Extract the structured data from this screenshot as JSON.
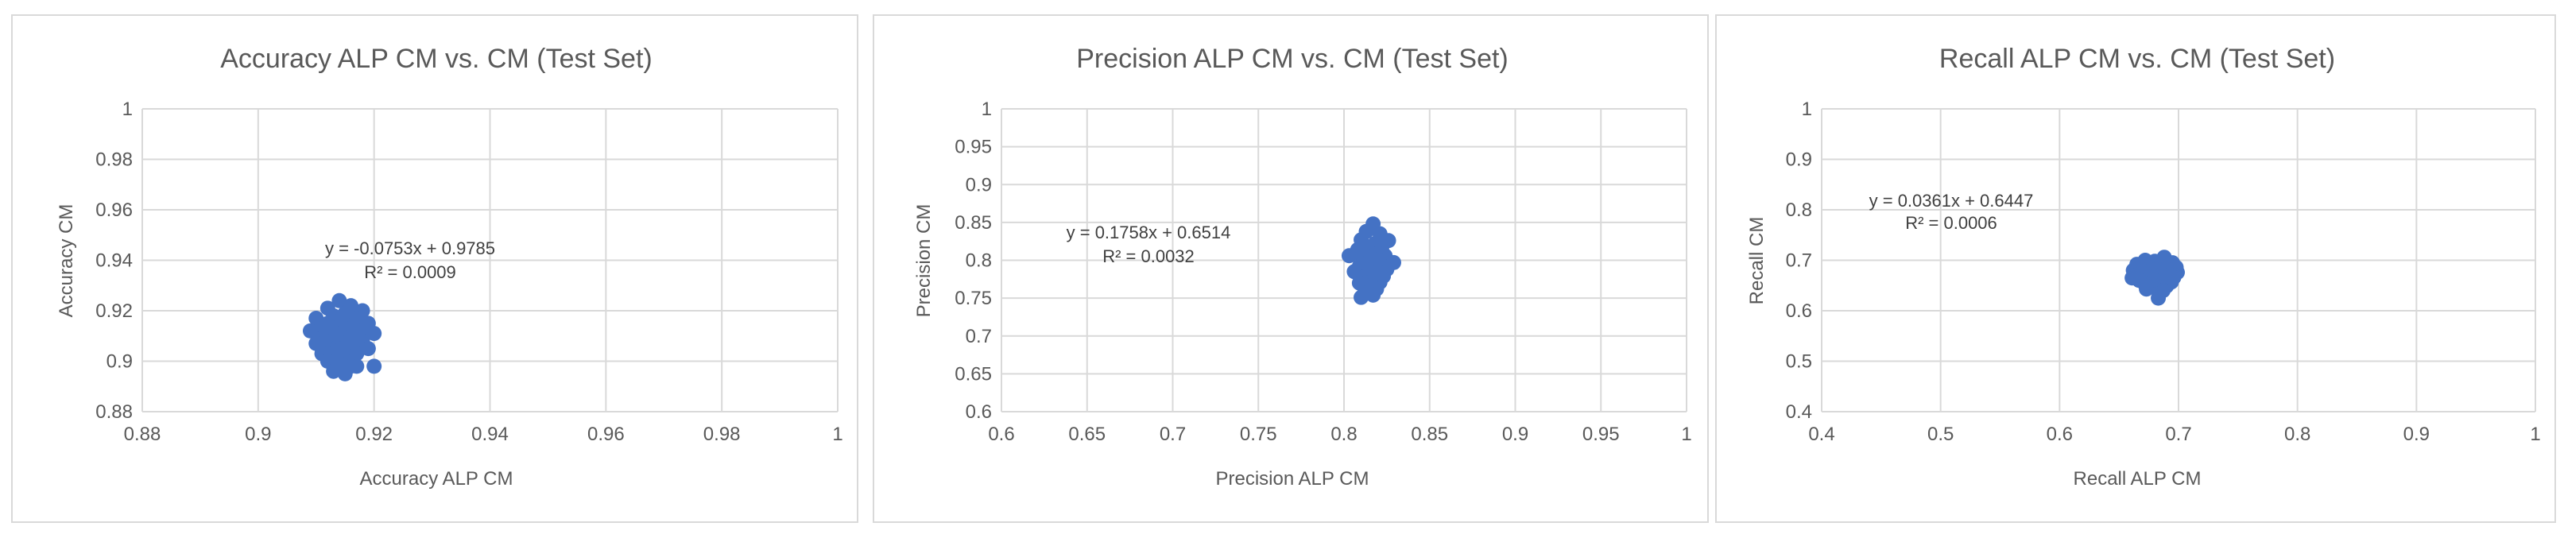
{
  "chart_data": [
    {
      "type": "scatter",
      "title": "Accuracy ALP CM vs. CM (Test Set)",
      "xlabel": "Accuracy ALP CM",
      "ylabel": "Accuracy CM",
      "xlim": [
        0.88,
        1
      ],
      "ylim": [
        0.88,
        1
      ],
      "xticks": [
        "0.88",
        "0.9",
        "0.92",
        "0.94",
        "0.96",
        "0.98",
        "1"
      ],
      "yticks": [
        "0.88",
        "0.9",
        "0.92",
        "0.94",
        "0.96",
        "0.98",
        "1"
      ],
      "grid": true,
      "marker_color": "#4472C4",
      "trendline": {
        "equation": "y = -0.0753x + 0.9785",
        "r2": "R² = 0.0009"
      },
      "points": [
        [
          0.914,
          0.924
        ],
        [
          0.916,
          0.922
        ],
        [
          0.912,
          0.921
        ],
        [
          0.918,
          0.92
        ],
        [
          0.915,
          0.919
        ],
        [
          0.913,
          0.918
        ],
        [
          0.91,
          0.917
        ],
        [
          0.917,
          0.917
        ],
        [
          0.914,
          0.916
        ],
        [
          0.919,
          0.915
        ],
        [
          0.912,
          0.915
        ],
        [
          0.916,
          0.914
        ],
        [
          0.911,
          0.913
        ],
        [
          0.915,
          0.913
        ],
        [
          0.918,
          0.912
        ],
        [
          0.913,
          0.912
        ],
        [
          0.909,
          0.912
        ],
        [
          0.917,
          0.911
        ],
        [
          0.914,
          0.911
        ],
        [
          0.92,
          0.911
        ],
        [
          0.912,
          0.91
        ],
        [
          0.916,
          0.91
        ],
        [
          0.911,
          0.909
        ],
        [
          0.915,
          0.909
        ],
        [
          0.918,
          0.908
        ],
        [
          0.913,
          0.908
        ],
        [
          0.91,
          0.907
        ],
        [
          0.917,
          0.907
        ],
        [
          0.914,
          0.906
        ],
        [
          0.916,
          0.906
        ],
        [
          0.912,
          0.905
        ],
        [
          0.919,
          0.905
        ],
        [
          0.915,
          0.904
        ],
        [
          0.913,
          0.903
        ],
        [
          0.911,
          0.903
        ],
        [
          0.917,
          0.903
        ],
        [
          0.914,
          0.902
        ],
        [
          0.916,
          0.901
        ],
        [
          0.912,
          0.9
        ],
        [
          0.915,
          0.9
        ],
        [
          0.913,
          0.899
        ],
        [
          0.917,
          0.898
        ],
        [
          0.92,
          0.898
        ],
        [
          0.914,
          0.897
        ],
        [
          0.916,
          0.898
        ],
        [
          0.913,
          0.896
        ],
        [
          0.915,
          0.895
        ],
        [
          0.914,
          0.9095
        ],
        [
          0.9135,
          0.9105
        ],
        [
          0.9155,
          0.9075
        ],
        [
          0.9125,
          0.9135
        ],
        [
          0.9165,
          0.9125
        ],
        [
          0.9145,
          0.9045
        ]
      ]
    },
    {
      "type": "scatter",
      "title": "Precision ALP CM vs. CM (Test Set)",
      "xlabel": "Precision ALP CM",
      "ylabel": "Precision CM",
      "xlim": [
        0.6,
        1
      ],
      "ylim": [
        0.6,
        1
      ],
      "xticks": [
        "0.6",
        "0.65",
        "0.7",
        "0.75",
        "0.8",
        "0.85",
        "0.9",
        "0.95",
        "1"
      ],
      "yticks": [
        "0.6",
        "0.65",
        "0.7",
        "0.75",
        "0.8",
        "0.85",
        "0.9",
        "0.95",
        "1"
      ],
      "grid": true,
      "marker_color": "#4472C4",
      "trendline": {
        "equation": "y = 0.1758x + 0.6514",
        "r2": "R² = 0.0032"
      },
      "points": [
        [
          0.817,
          0.848
        ],
        [
          0.813,
          0.838
        ],
        [
          0.821,
          0.835
        ],
        [
          0.826,
          0.826
        ],
        [
          0.81,
          0.827
        ],
        [
          0.818,
          0.822
        ],
        [
          0.815,
          0.818
        ],
        [
          0.822,
          0.816
        ],
        [
          0.808,
          0.814
        ],
        [
          0.812,
          0.81
        ],
        [
          0.82,
          0.809
        ],
        [
          0.824,
          0.806
        ],
        [
          0.816,
          0.805
        ],
        [
          0.803,
          0.806
        ],
        [
          0.829,
          0.797
        ],
        [
          0.811,
          0.8
        ],
        [
          0.819,
          0.798
        ],
        [
          0.814,
          0.795
        ],
        [
          0.822,
          0.793
        ],
        [
          0.809,
          0.792
        ],
        [
          0.817,
          0.79
        ],
        [
          0.825,
          0.788
        ],
        [
          0.813,
          0.786
        ],
        [
          0.82,
          0.784
        ],
        [
          0.806,
          0.785
        ],
        [
          0.815,
          0.781
        ],
        [
          0.823,
          0.779
        ],
        [
          0.811,
          0.777
        ],
        [
          0.818,
          0.776
        ],
        [
          0.814,
          0.772
        ],
        [
          0.821,
          0.771
        ],
        [
          0.809,
          0.77
        ],
        [
          0.816,
          0.767
        ],
        [
          0.812,
          0.763
        ],
        [
          0.819,
          0.762
        ],
        [
          0.814,
          0.758
        ],
        [
          0.81,
          0.751
        ],
        [
          0.817,
          0.754
        ],
        [
          0.815,
          0.789
        ],
        [
          0.818,
          0.783
        ],
        [
          0.813,
          0.796
        ],
        [
          0.82,
          0.801
        ]
      ]
    },
    {
      "type": "scatter",
      "title": "Recall ALP CM vs. CM (Test Set)",
      "xlabel": "Recall ALP CM",
      "ylabel": "Recall CM",
      "xlim": [
        0.4,
        1
      ],
      "ylim": [
        0.4,
        1
      ],
      "xticks": [
        "0.4",
        "0.5",
        "0.6",
        "0.7",
        "0.8",
        "0.9",
        "1"
      ],
      "yticks": [
        "0.4",
        "0.5",
        "0.6",
        "0.7",
        "0.8",
        "0.9",
        "1"
      ],
      "grid": true,
      "marker_color": "#4472C4",
      "trendline": {
        "equation": "y = 0.0361x + 0.6447",
        "r2": "R² = 0.0006"
      },
      "points": [
        [
          0.688,
          0.706
        ],
        [
          0.672,
          0.7
        ],
        [
          0.68,
          0.698
        ],
        [
          0.695,
          0.695
        ],
        [
          0.665,
          0.692
        ],
        [
          0.677,
          0.69
        ],
        [
          0.685,
          0.688
        ],
        [
          0.698,
          0.686
        ],
        [
          0.67,
          0.685
        ],
        [
          0.682,
          0.683
        ],
        [
          0.691,
          0.681
        ],
        [
          0.662,
          0.68
        ],
        [
          0.675,
          0.678
        ],
        [
          0.687,
          0.677
        ],
        [
          0.699,
          0.676
        ],
        [
          0.668,
          0.673
        ],
        [
          0.68,
          0.672
        ],
        [
          0.693,
          0.671
        ],
        [
          0.673,
          0.669
        ],
        [
          0.684,
          0.667
        ],
        [
          0.696,
          0.666
        ],
        [
          0.661,
          0.665
        ],
        [
          0.678,
          0.664
        ],
        [
          0.689,
          0.662
        ],
        [
          0.667,
          0.66
        ],
        [
          0.682,
          0.658
        ],
        [
          0.694,
          0.657
        ],
        [
          0.671,
          0.655
        ],
        [
          0.686,
          0.653
        ],
        [
          0.676,
          0.651
        ],
        [
          0.69,
          0.649
        ],
        [
          0.68,
          0.646
        ],
        [
          0.673,
          0.643
        ],
        [
          0.687,
          0.64
        ],
        [
          0.683,
          0.625
        ],
        [
          0.679,
          0.661
        ],
        [
          0.692,
          0.668
        ],
        [
          0.664,
          0.67
        ]
      ]
    }
  ]
}
